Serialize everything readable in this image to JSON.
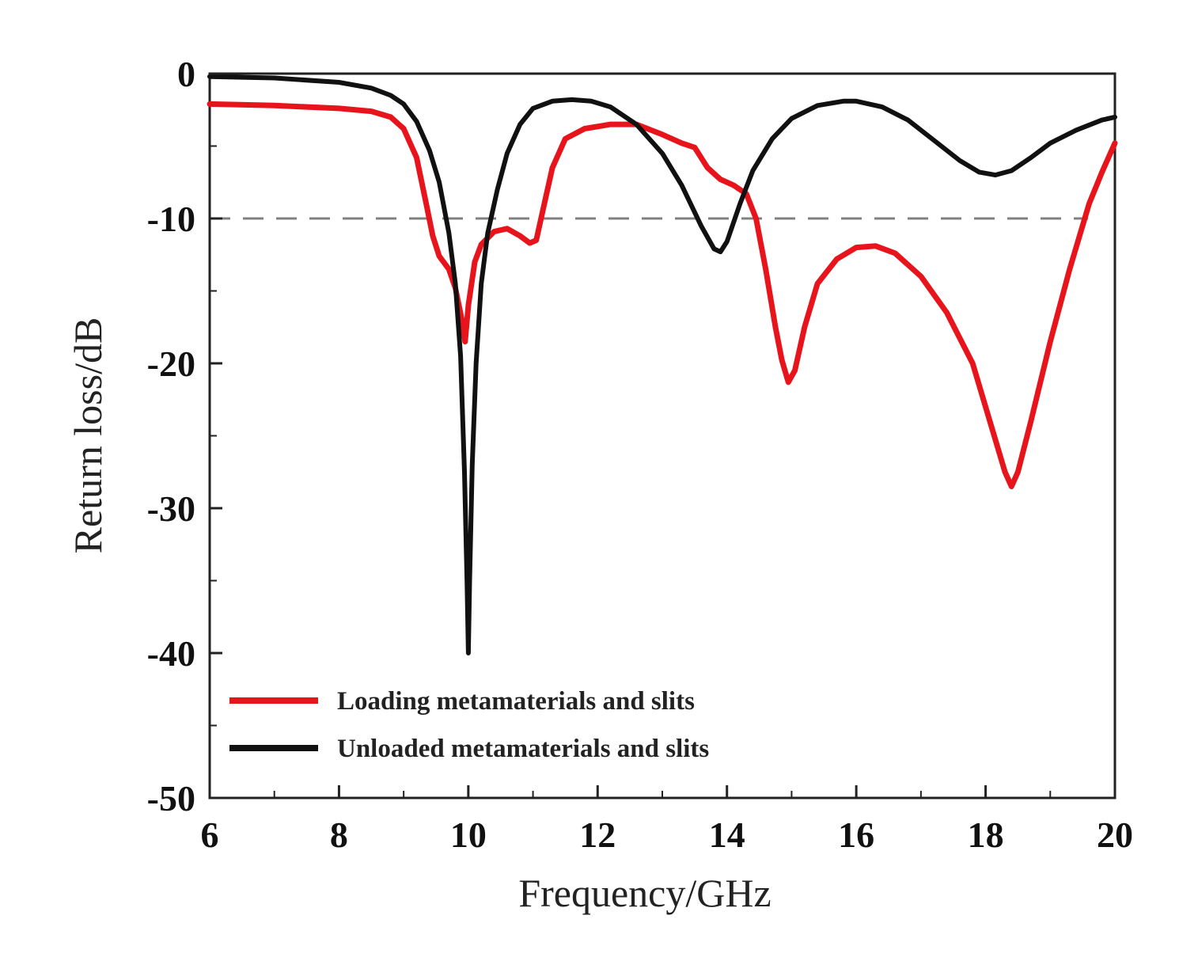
{
  "chart_data": {
    "type": "line",
    "title": "",
    "xlabel": "Frequency/GHz",
    "ylabel": "Return loss/dB",
    "xlim": [
      6,
      20
    ],
    "ylim": [
      -50,
      0
    ],
    "x_ticks": [
      6,
      8,
      10,
      12,
      14,
      16,
      18,
      20
    ],
    "y_ticks": [
      0,
      -10,
      -20,
      -30,
      -40,
      -50
    ],
    "x_tick_labels": [
      "6",
      "8",
      "10",
      "12",
      "14",
      "16",
      "18",
      "20"
    ],
    "y_tick_labels": [
      "0",
      "-10",
      "-20",
      "-30",
      "-40",
      "-50"
    ],
    "reference_line": {
      "y": -10,
      "style": "dashed",
      "color": "#808080"
    },
    "legend_position": "bottom-left",
    "series": [
      {
        "name": "Loading metamaterials and slits",
        "color": "#e8141c",
        "x": [
          6,
          7,
          8,
          8.5,
          8.8,
          9.0,
          9.2,
          9.35,
          9.45,
          9.55,
          9.7,
          9.8,
          9.9,
          9.95,
          10.0,
          10.1,
          10.2,
          10.4,
          10.6,
          10.8,
          10.95,
          11.05,
          11.15,
          11.3,
          11.5,
          11.8,
          12.2,
          12.6,
          13.0,
          13.3,
          13.5,
          13.7,
          13.9,
          14.1,
          14.3,
          14.45,
          14.6,
          14.75,
          14.85,
          14.95,
          15.05,
          15.2,
          15.4,
          15.7,
          16.0,
          16.3,
          16.6,
          17.0,
          17.4,
          17.8,
          18.1,
          18.3,
          18.4,
          18.5,
          18.7,
          19.0,
          19.3,
          19.6,
          19.8,
          20.0
        ],
        "y": [
          -2.1,
          -2.2,
          -2.4,
          -2.6,
          -3.0,
          -3.8,
          -5.8,
          -9.0,
          -11.2,
          -12.6,
          -13.5,
          -14.8,
          -17.0,
          -18.5,
          -16.0,
          -13.0,
          -11.8,
          -10.9,
          -10.7,
          -11.2,
          -11.7,
          -11.5,
          -9.5,
          -6.5,
          -4.5,
          -3.8,
          -3.5,
          -3.5,
          -4.2,
          -4.8,
          -5.1,
          -6.5,
          -7.3,
          -7.7,
          -8.3,
          -10.0,
          -13.5,
          -17.5,
          -19.8,
          -21.3,
          -20.5,
          -17.5,
          -14.5,
          -12.8,
          -12.0,
          -11.9,
          -12.4,
          -14.0,
          -16.5,
          -20.0,
          -24.5,
          -27.5,
          -28.5,
          -27.5,
          -24.0,
          -18.5,
          -13.5,
          -9.0,
          -6.8,
          -4.8
        ]
      },
      {
        "name": "Unloaded metamaterials and slits",
        "color": "#111111",
        "x": [
          6,
          7,
          8,
          8.5,
          8.8,
          9.0,
          9.2,
          9.4,
          9.55,
          9.7,
          9.8,
          9.88,
          9.94,
          9.98,
          10.0,
          10.02,
          10.06,
          10.12,
          10.2,
          10.3,
          10.45,
          10.6,
          10.8,
          11.0,
          11.3,
          11.6,
          11.9,
          12.2,
          12.6,
          13.0,
          13.3,
          13.6,
          13.8,
          13.9,
          14.0,
          14.2,
          14.4,
          14.7,
          15.0,
          15.4,
          15.8,
          16.0,
          16.4,
          16.8,
          17.2,
          17.6,
          17.9,
          18.15,
          18.4,
          18.7,
          19.0,
          19.4,
          19.8,
          20.0
        ],
        "y": [
          -0.2,
          -0.3,
          -0.6,
          -1.0,
          -1.5,
          -2.1,
          -3.3,
          -5.3,
          -7.5,
          -11.0,
          -14.5,
          -19.5,
          -27.5,
          -35.0,
          -40.0,
          -35.0,
          -27.0,
          -20.0,
          -14.5,
          -11.0,
          -8.0,
          -5.5,
          -3.5,
          -2.4,
          -1.9,
          -1.8,
          -1.9,
          -2.3,
          -3.5,
          -5.5,
          -7.7,
          -10.5,
          -12.1,
          -12.3,
          -11.6,
          -9.0,
          -6.7,
          -4.5,
          -3.1,
          -2.2,
          -1.9,
          -1.9,
          -2.3,
          -3.2,
          -4.6,
          -6.0,
          -6.8,
          -7.0,
          -6.7,
          -5.8,
          -4.8,
          -3.9,
          -3.2,
          -3.0
        ]
      }
    ]
  }
}
